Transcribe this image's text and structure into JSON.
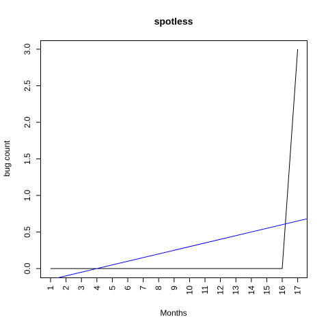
{
  "chart_data": {
    "type": "line",
    "title": "spotless",
    "xlabel": "Months",
    "ylabel": "bug count",
    "x": [
      1,
      2,
      3,
      4,
      5,
      6,
      7,
      8,
      9,
      10,
      11,
      12,
      13,
      14,
      15,
      16,
      17
    ],
    "xticks": [
      "1",
      "2",
      "3",
      "4",
      "5",
      "6",
      "7",
      "8",
      "9",
      "10",
      "11",
      "12",
      "13",
      "14",
      "15",
      "16",
      "17"
    ],
    "yticks": [
      "0.0",
      "0.5",
      "1.0",
      "1.5",
      "2.0",
      "2.5",
      "3.0"
    ],
    "ylim": [
      0,
      3
    ],
    "series": [
      {
        "values": [
          0,
          0,
          0,
          0,
          0,
          0,
          0,
          0,
          0,
          0,
          0,
          0,
          0,
          0,
          0,
          0,
          3
        ],
        "color": "#000000"
      }
    ],
    "trend_line": {
      "intercept": -0.2,
      "slope": 0.05,
      "color": "#0000ff"
    },
    "grid": false,
    "legend": "none"
  }
}
